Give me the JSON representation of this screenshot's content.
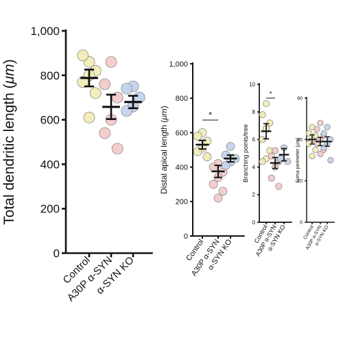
{
  "chart_data": [
    {
      "type": "scatter",
      "ylabel": "Total dendritic length (μm)",
      "ylabel_parts": [
        "Total dendritic length (",
        "μm",
        ")"
      ],
      "ylim": [
        0,
        1000
      ],
      "yticks": [
        "0",
        "200",
        "400",
        "600",
        "800",
        "1,000"
      ],
      "categories": [
        "Control",
        "A30P α-SYN",
        "α-SYN KO"
      ],
      "category_colors": [
        "#f1ebb4",
        "#f3c9c9",
        "#c3d3ec"
      ],
      "points": [
        [
          860,
          890,
          820,
          800,
          770,
          720,
          610
        ],
        [
          860,
          760,
          700,
          600,
          540,
          470
        ],
        [
          750,
          740,
          700,
          660,
          640
        ]
      ],
      "mean": [
        788,
        658,
        680
      ],
      "sem": [
        38,
        55,
        28
      ],
      "significance": []
    },
    {
      "type": "scatter",
      "ylabel": "Distal apical length (μm)",
      "ylabel_parts": [
        "Distal apical length (",
        "μm",
        ")"
      ],
      "ylim": [
        0,
        1000
      ],
      "yticks": [
        "0",
        "200",
        "400",
        "600",
        "800",
        "1,000"
      ],
      "categories": [
        "Control",
        "A30P α-SYN",
        "α-SYN KO"
      ],
      "category_colors": [
        "#f1ebb4",
        "#f3c9c9",
        "#c3d3ec"
      ],
      "points": [
        [
          600,
          580,
          550,
          510,
          490,
          460
        ],
        [
          420,
          400,
          370,
          340,
          300,
          260,
          220
        ],
        [
          520,
          470,
          450,
          430,
          410
        ]
      ],
      "mean": [
        530,
        375,
        450
      ],
      "sem": [
        25,
        35,
        20
      ],
      "significance": [
        {
          "from": 0,
          "to": 1,
          "label": "*"
        }
      ]
    },
    {
      "type": "scatter",
      "ylabel": "Branching points/tree",
      "ylim": [
        0,
        10
      ],
      "yticks": [
        "0",
        "2",
        "4",
        "6",
        "8",
        "10"
      ],
      "categories": [
        "Control",
        "A30P α-SYN",
        "α-SYN KO"
      ],
      "category_colors": [
        "#f1ebb4",
        "#f3c9c9",
        "#c3d3ec"
      ],
      "points": [
        [
          8.6,
          7.8,
          7.2,
          6.8,
          6.0,
          5.2,
          4.6,
          4.4
        ],
        [
          5.2,
          4.8,
          4.4,
          4.0,
          3.2,
          2.6
        ],
        [
          5.4,
          4.6,
          4.4
        ]
      ],
      "mean": [
        6.6,
        4.3,
        4.9
      ],
      "sem": [
        0.55,
        0.4,
        0.45
      ],
      "significance": [
        {
          "from": 0,
          "to": 1,
          "label": "*"
        }
      ]
    },
    {
      "type": "scatter",
      "ylabel": "Soma perimeter (μm)",
      "ylabel_parts": [
        "Soma perimeter (",
        "μm",
        ")"
      ],
      "ylim": [
        0,
        60
      ],
      "yticks": [
        "0",
        "20",
        "40",
        "60"
      ],
      "categories": [
        "Control",
        "A30P α-SYN",
        "α-SYN KO"
      ],
      "category_colors": [
        "#f1ebb4",
        "#f3c9c9",
        "#c3d3ec"
      ],
      "points": [
        [
          46,
          43,
          42,
          40,
          38,
          35,
          32
        ],
        [
          48,
          45,
          42,
          40,
          38,
          35,
          33
        ],
        [
          46,
          43,
          40,
          38,
          36,
          30
        ]
      ],
      "mean": [
        40,
        39,
        39
      ],
      "sem": [
        2.2,
        2,
        2.3
      ],
      "significance": []
    }
  ]
}
